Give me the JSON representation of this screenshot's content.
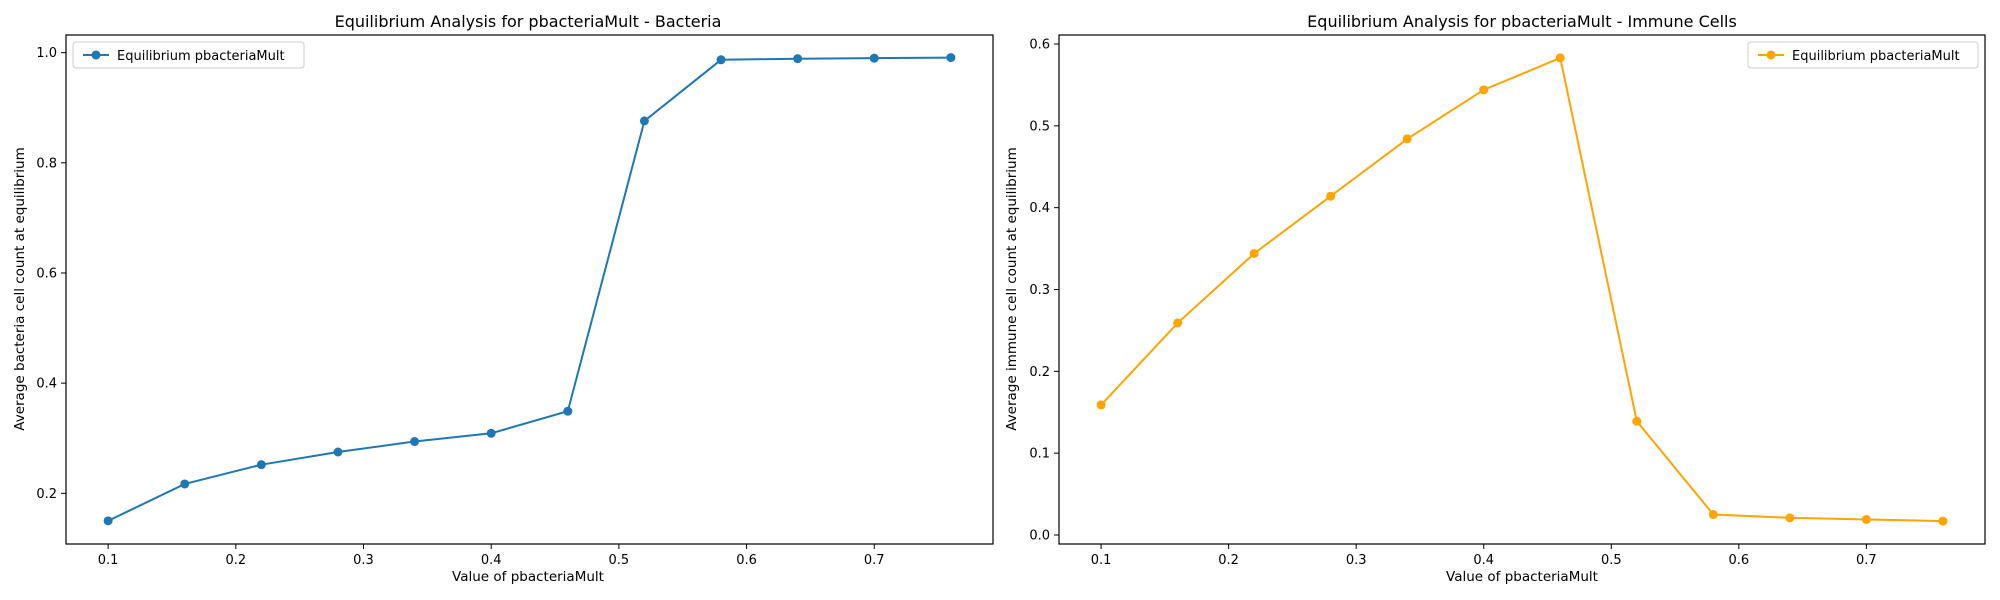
{
  "chart_data": [
    {
      "type": "line",
      "title": "Equilibrium Analysis for pbacteriaMult - Bacteria",
      "xlabel": "Value of pbacteriaMult",
      "ylabel": "Average bacteria cell count at equilibrium",
      "xlim": [
        0.067,
        0.793
      ],
      "ylim": [
        0.108,
        1.032
      ],
      "xticks": [
        0.1,
        0.2,
        0.3,
        0.4,
        0.5,
        0.6,
        0.7
      ],
      "xtick_labels": [
        "0.1",
        "0.2",
        "0.3",
        "0.4",
        "0.5",
        "0.6",
        "0.7"
      ],
      "yticks": [
        0.2,
        0.4,
        0.6,
        0.8,
        1.0
      ],
      "ytick_labels": [
        "0.2",
        "0.4",
        "0.6",
        "0.8",
        "1.0"
      ],
      "grid": false,
      "legend_position": "top-left",
      "series": [
        {
          "name": "Equilibrium pbacteriaMult",
          "color": "#1f77b4",
          "marker": "circle",
          "x": [
            0.1,
            0.16,
            0.22,
            0.28,
            0.34,
            0.4,
            0.46,
            0.52,
            0.58,
            0.64,
            0.7,
            0.76
          ],
          "y": [
            0.15,
            0.217,
            0.252,
            0.275,
            0.294,
            0.309,
            0.349,
            0.876,
            0.987,
            0.989,
            0.99,
            0.991
          ]
        }
      ]
    },
    {
      "type": "line",
      "title": "Equilibrium Analysis for pbacteriaMult - Immune Cells",
      "xlabel": "Value of pbacteriaMult",
      "ylabel": "Average immune cell count at equilibrium",
      "xlim": [
        0.067,
        0.793
      ],
      "ylim": [
        -0.011,
        0.611
      ],
      "xticks": [
        0.1,
        0.2,
        0.3,
        0.4,
        0.5,
        0.6,
        0.7
      ],
      "xtick_labels": [
        "0.1",
        "0.2",
        "0.3",
        "0.4",
        "0.5",
        "0.6",
        "0.7"
      ],
      "yticks": [
        0.0,
        0.1,
        0.2,
        0.3,
        0.4,
        0.5,
        0.6
      ],
      "ytick_labels": [
        "0.0",
        "0.1",
        "0.2",
        "0.3",
        "0.4",
        "0.5",
        "0.6"
      ],
      "grid": false,
      "legend_position": "top-right",
      "series": [
        {
          "name": "Equilibrium pbacteriaMult",
          "color": "#ffa500",
          "marker": "circle",
          "x": [
            0.1,
            0.16,
            0.22,
            0.28,
            0.34,
            0.4,
            0.46,
            0.52,
            0.58,
            0.64,
            0.7,
            0.76
          ],
          "y": [
            0.159,
            0.259,
            0.344,
            0.414,
            0.484,
            0.544,
            0.583,
            0.139,
            0.025,
            0.021,
            0.019,
            0.017
          ]
        }
      ]
    }
  ]
}
